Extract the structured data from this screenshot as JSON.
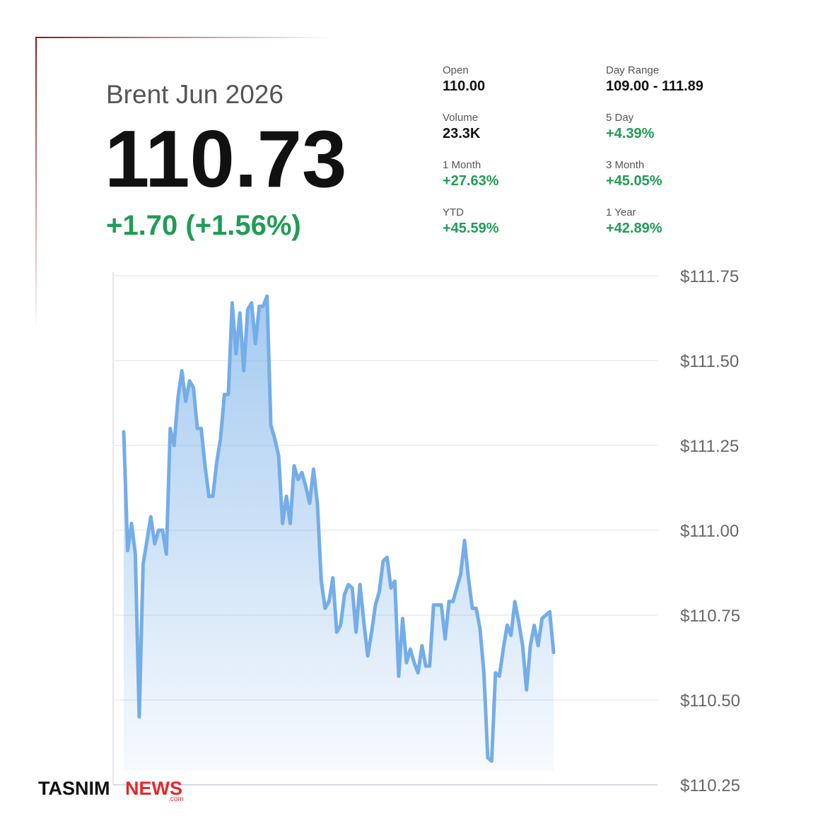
{
  "header": {
    "title": "Brent Jun 2026",
    "price": "110.73",
    "change": "+1.70 (+1.56%)"
  },
  "stats": [
    {
      "label": "Open",
      "value": "110.00"
    },
    {
      "label": "Day Range",
      "value": "109.00 - 111.89"
    },
    {
      "label": "Volume",
      "value": "23.3K"
    },
    {
      "label": "5 Day",
      "value": "+4.39%"
    },
    {
      "label": "1 Month",
      "value": "+27.63%"
    },
    {
      "label": "3 Month",
      "value": "+45.05%"
    },
    {
      "label": "YTD",
      "value": "+45.59%"
    },
    {
      "label": "1 Year",
      "value": "+42.89%"
    }
  ],
  "chart_data": {
    "type": "line",
    "color": "#74ade8",
    "grid": true,
    "values": [
      111.29,
      110.94,
      111.02,
      110.93,
      110.45,
      110.9,
      110.97,
      111.04,
      110.96,
      111.0,
      111.0,
      110.93,
      111.3,
      111.25,
      111.39,
      111.47,
      111.38,
      111.44,
      111.42,
      111.3,
      111.3,
      111.19,
      111.1,
      111.1,
      111.2,
      111.27,
      111.4,
      111.4,
      111.67,
      111.52,
      111.64,
      111.47,
      111.65,
      111.67,
      111.55,
      111.66,
      111.66,
      111.69,
      111.31,
      111.27,
      111.22,
      111.02,
      111.1,
      111.02,
      111.19,
      111.15,
      111.17,
      111.13,
      111.08,
      111.18,
      111.08,
      110.85,
      110.77,
      110.79,
      110.86,
      110.7,
      110.72,
      110.81,
      110.84,
      110.83,
      110.7,
      110.84,
      110.73,
      110.63,
      110.7,
      110.78,
      110.82,
      110.91,
      110.92,
      110.83,
      110.85,
      110.57,
      110.74,
      110.61,
      110.65,
      110.61,
      110.58,
      110.66,
      110.6,
      110.6,
      110.78,
      110.78,
      110.78,
      110.68,
      110.79,
      110.79,
      110.83,
      110.87,
      110.97,
      110.86,
      110.77,
      110.77,
      110.71,
      110.58,
      110.33,
      110.32,
      110.58,
      110.57,
      110.65,
      110.72,
      110.69,
      110.79,
      110.73,
      110.66,
      110.53,
      110.66,
      110.72,
      110.66,
      110.74,
      110.75,
      110.76,
      110.64
    ],
    "ylim": [
      110.25,
      111.75
    ],
    "yticks": [
      {
        "value": 110.25,
        "label": "$110.25"
      },
      {
        "value": 110.5,
        "label": "$110.50"
      },
      {
        "value": 110.75,
        "label": "$110.75"
      },
      {
        "value": 111.0,
        "label": "$111.00"
      },
      {
        "value": 111.25,
        "label": "$111.25"
      },
      {
        "value": 111.5,
        "label": "$111.50"
      },
      {
        "value": 111.75,
        "label": "$111.75"
      }
    ]
  },
  "watermark": {
    "brand": "TASNIM",
    "accent": "NEWS",
    "suffix": ".com"
  }
}
